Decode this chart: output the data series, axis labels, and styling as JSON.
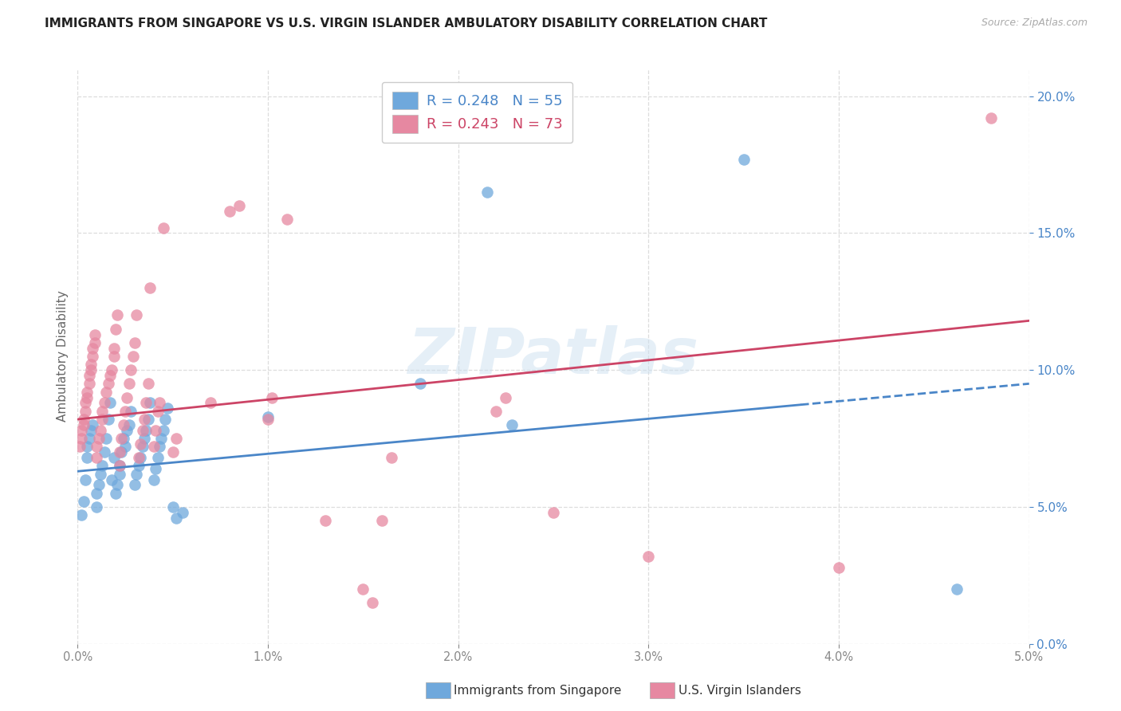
{
  "title": "IMMIGRANTS FROM SINGAPORE VS U.S. VIRGIN ISLANDER AMBULATORY DISABILITY CORRELATION CHART",
  "source": "Source: ZipAtlas.com",
  "xlabel_blue": "Immigrants from Singapore",
  "xlabel_pink": "U.S. Virgin Islanders",
  "ylabel": "Ambulatory Disability",
  "xlim": [
    0.0,
    0.05
  ],
  "ylim": [
    0.0,
    0.21
  ],
  "legend_blue_R": "0.248",
  "legend_blue_N": "55",
  "legend_pink_R": "0.243",
  "legend_pink_N": "73",
  "blue_color": "#6fa8dc",
  "pink_color": "#e688a1",
  "trendline_blue": "#4a86c8",
  "trendline_pink": "#cc4466",
  "watermark_text": "ZIPatlas",
  "trendline_blue_x0": 0.0,
  "trendline_blue_y0": 0.063,
  "trendline_blue_x1": 0.05,
  "trendline_blue_y1": 0.095,
  "trendline_blue_solid_end": 0.038,
  "trendline_pink_x0": 0.0,
  "trendline_pink_y0": 0.082,
  "trendline_pink_x1": 0.05,
  "trendline_pink_y1": 0.118,
  "blue_points": [
    [
      0.0002,
      0.047
    ],
    [
      0.0003,
      0.052
    ],
    [
      0.0004,
      0.06
    ],
    [
      0.0005,
      0.068
    ],
    [
      0.0005,
      0.072
    ],
    [
      0.0006,
      0.075
    ],
    [
      0.0007,
      0.078
    ],
    [
      0.0008,
      0.08
    ],
    [
      0.001,
      0.05
    ],
    [
      0.001,
      0.055
    ],
    [
      0.0011,
      0.058
    ],
    [
      0.0012,
      0.062
    ],
    [
      0.0013,
      0.065
    ],
    [
      0.0014,
      0.07
    ],
    [
      0.0015,
      0.075
    ],
    [
      0.0016,
      0.082
    ],
    [
      0.0017,
      0.088
    ],
    [
      0.0018,
      0.06
    ],
    [
      0.0019,
      0.068
    ],
    [
      0.002,
      0.055
    ],
    [
      0.0021,
      0.058
    ],
    [
      0.0022,
      0.062
    ],
    [
      0.0022,
      0.065
    ],
    [
      0.0023,
      0.07
    ],
    [
      0.0024,
      0.075
    ],
    [
      0.0025,
      0.072
    ],
    [
      0.0026,
      0.078
    ],
    [
      0.0027,
      0.08
    ],
    [
      0.0028,
      0.085
    ],
    [
      0.003,
      0.058
    ],
    [
      0.0031,
      0.062
    ],
    [
      0.0032,
      0.065
    ],
    [
      0.0033,
      0.068
    ],
    [
      0.0034,
      0.072
    ],
    [
      0.0035,
      0.075
    ],
    [
      0.0036,
      0.078
    ],
    [
      0.0037,
      0.082
    ],
    [
      0.0038,
      0.088
    ],
    [
      0.004,
      0.06
    ],
    [
      0.0041,
      0.064
    ],
    [
      0.0042,
      0.068
    ],
    [
      0.0043,
      0.072
    ],
    [
      0.0044,
      0.075
    ],
    [
      0.0045,
      0.078
    ],
    [
      0.0046,
      0.082
    ],
    [
      0.0047,
      0.086
    ],
    [
      0.005,
      0.05
    ],
    [
      0.0052,
      0.046
    ],
    [
      0.0055,
      0.048
    ],
    [
      0.01,
      0.083
    ],
    [
      0.018,
      0.095
    ],
    [
      0.0215,
      0.165
    ],
    [
      0.0228,
      0.08
    ],
    [
      0.035,
      0.177
    ],
    [
      0.0462,
      0.02
    ]
  ],
  "pink_points": [
    [
      0.0001,
      0.072
    ],
    [
      0.0002,
      0.075
    ],
    [
      0.0002,
      0.078
    ],
    [
      0.0003,
      0.08
    ],
    [
      0.0003,
      0.082
    ],
    [
      0.0004,
      0.085
    ],
    [
      0.0004,
      0.088
    ],
    [
      0.0005,
      0.09
    ],
    [
      0.0005,
      0.092
    ],
    [
      0.0006,
      0.095
    ],
    [
      0.0006,
      0.098
    ],
    [
      0.0007,
      0.1
    ],
    [
      0.0007,
      0.102
    ],
    [
      0.0008,
      0.105
    ],
    [
      0.0008,
      0.108
    ],
    [
      0.0009,
      0.11
    ],
    [
      0.0009,
      0.113
    ],
    [
      0.001,
      0.068
    ],
    [
      0.001,
      0.072
    ],
    [
      0.0011,
      0.075
    ],
    [
      0.0012,
      0.078
    ],
    [
      0.0013,
      0.082
    ],
    [
      0.0013,
      0.085
    ],
    [
      0.0014,
      0.088
    ],
    [
      0.0015,
      0.092
    ],
    [
      0.0016,
      0.095
    ],
    [
      0.0017,
      0.098
    ],
    [
      0.0018,
      0.1
    ],
    [
      0.0019,
      0.105
    ],
    [
      0.0019,
      0.108
    ],
    [
      0.002,
      0.115
    ],
    [
      0.0021,
      0.12
    ],
    [
      0.0022,
      0.065
    ],
    [
      0.0022,
      0.07
    ],
    [
      0.0023,
      0.075
    ],
    [
      0.0024,
      0.08
    ],
    [
      0.0025,
      0.085
    ],
    [
      0.0026,
      0.09
    ],
    [
      0.0027,
      0.095
    ],
    [
      0.0028,
      0.1
    ],
    [
      0.0029,
      0.105
    ],
    [
      0.003,
      0.11
    ],
    [
      0.0031,
      0.12
    ],
    [
      0.0032,
      0.068
    ],
    [
      0.0033,
      0.073
    ],
    [
      0.0034,
      0.078
    ],
    [
      0.0035,
      0.082
    ],
    [
      0.0036,
      0.088
    ],
    [
      0.0037,
      0.095
    ],
    [
      0.0038,
      0.13
    ],
    [
      0.004,
      0.072
    ],
    [
      0.0041,
      0.078
    ],
    [
      0.0042,
      0.085
    ],
    [
      0.0043,
      0.088
    ],
    [
      0.0045,
      0.152
    ],
    [
      0.005,
      0.07
    ],
    [
      0.0052,
      0.075
    ],
    [
      0.007,
      0.088
    ],
    [
      0.008,
      0.158
    ],
    [
      0.0085,
      0.16
    ],
    [
      0.01,
      0.082
    ],
    [
      0.0102,
      0.09
    ],
    [
      0.011,
      0.155
    ],
    [
      0.013,
      0.045
    ],
    [
      0.015,
      0.02
    ],
    [
      0.0155,
      0.015
    ],
    [
      0.016,
      0.045
    ],
    [
      0.0165,
      0.068
    ],
    [
      0.022,
      0.085
    ],
    [
      0.0225,
      0.09
    ],
    [
      0.025,
      0.048
    ],
    [
      0.03,
      0.032
    ],
    [
      0.04,
      0.028
    ],
    [
      0.048,
      0.192
    ]
  ]
}
